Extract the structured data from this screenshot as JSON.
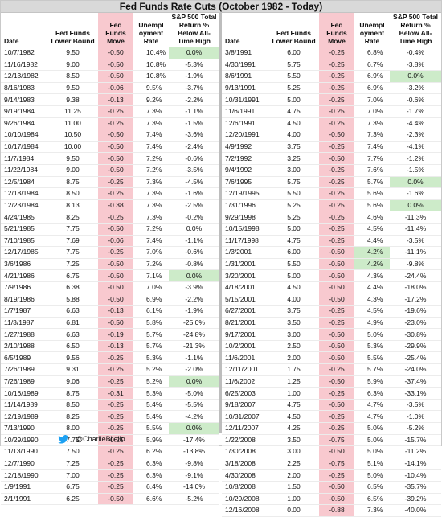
{
  "title": "Fed Funds Rate Cuts (October 1982 - Today)",
  "headers": {
    "date": "Date",
    "lower_bound": "Fed Funds Lower Bound",
    "move": "Fed Funds Move",
    "unemployment": "Unempl oyment Rate",
    "sp500": "S&P 500 Total Return % Below All-Time High"
  },
  "left_rows": [
    {
      "date": "10/7/1982",
      "rate": "9.50",
      "move": "-0.50",
      "unemp": "10.4%",
      "sp": "0.0%",
      "highlight": true
    },
    {
      "date": "11/16/1982",
      "rate": "9.00",
      "move": "-0.50",
      "unemp": "10.8%",
      "sp": "-5.3%",
      "highlight": false
    },
    {
      "date": "12/13/1982",
      "rate": "8.50",
      "move": "-0.50",
      "unemp": "10.8%",
      "sp": "-1.9%",
      "highlight": false
    },
    {
      "date": "8/16/1983",
      "rate": "9.50",
      "move": "-0.06",
      "unemp": "9.5%",
      "sp": "-3.7%",
      "highlight": false
    },
    {
      "date": "9/14/1983",
      "rate": "9.38",
      "move": "-0.13",
      "unemp": "9.2%",
      "sp": "-2.2%",
      "highlight": false
    },
    {
      "date": "9/19/1984",
      "rate": "11.25",
      "move": "-0.25",
      "unemp": "7.3%",
      "sp": "-1.1%",
      "highlight": false
    },
    {
      "date": "9/26/1984",
      "rate": "11.00",
      "move": "-0.25",
      "unemp": "7.3%",
      "sp": "-1.5%",
      "highlight": false
    },
    {
      "date": "10/10/1984",
      "rate": "10.50",
      "move": "-0.50",
      "unemp": "7.4%",
      "sp": "-3.6%",
      "highlight": false
    },
    {
      "date": "10/17/1984",
      "rate": "10.00",
      "move": "-0.50",
      "unemp": "7.4%",
      "sp": "-2.4%",
      "highlight": false
    },
    {
      "date": "11/7/1984",
      "rate": "9.50",
      "move": "-0.50",
      "unemp": "7.2%",
      "sp": "-0.6%",
      "highlight": false
    },
    {
      "date": "11/22/1984",
      "rate": "9.00",
      "move": "-0.50",
      "unemp": "7.2%",
      "sp": "-3.5%",
      "highlight": false
    },
    {
      "date": "12/5/1984",
      "rate": "8.75",
      "move": "-0.25",
      "unemp": "7.3%",
      "sp": "-4.5%",
      "highlight": false
    },
    {
      "date": "12/18/1984",
      "rate": "8.50",
      "move": "-0.25",
      "unemp": "7.3%",
      "sp": "-1.6%",
      "highlight": false
    },
    {
      "date": "12/23/1984",
      "rate": "8.13",
      "move": "-0.38",
      "unemp": "7.3%",
      "sp": "-2.5%",
      "highlight": false
    },
    {
      "date": "4/24/1985",
      "rate": "8.25",
      "move": "-0.25",
      "unemp": "7.3%",
      "sp": "-0.2%",
      "highlight": false
    },
    {
      "date": "5/21/1985",
      "rate": "7.75",
      "move": "-0.50",
      "unemp": "7.2%",
      "sp": "0.0%",
      "highlight": false
    },
    {
      "date": "7/10/1985",
      "rate": "7.69",
      "move": "-0.06",
      "unemp": "7.4%",
      "sp": "-1.1%",
      "highlight": false
    },
    {
      "date": "12/17/1985",
      "rate": "7.75",
      "move": "-0.25",
      "unemp": "7.0%",
      "sp": "-0.6%",
      "highlight": false
    },
    {
      "date": "3/6/1986",
      "rate": "7.25",
      "move": "-0.50",
      "unemp": "7.2%",
      "sp": "-0.8%",
      "highlight": false
    },
    {
      "date": "4/21/1986",
      "rate": "6.75",
      "move": "-0.50",
      "unemp": "7.1%",
      "sp": "0.0%",
      "highlight": true
    },
    {
      "date": "7/9/1986",
      "rate": "6.38",
      "move": "-0.50",
      "unemp": "7.0%",
      "sp": "-3.9%",
      "highlight": false
    },
    {
      "date": "8/19/1986",
      "rate": "5.88",
      "move": "-0.50",
      "unemp": "6.9%",
      "sp": "-2.2%",
      "highlight": false
    },
    {
      "date": "1/7/1987",
      "rate": "6.63",
      "move": "-0.13",
      "unemp": "6.1%",
      "sp": "-1.9%",
      "highlight": false
    },
    {
      "date": "11/3/1987",
      "rate": "6.81",
      "move": "-0.50",
      "unemp": "5.8%",
      "sp": "-25.0%",
      "highlight": false
    },
    {
      "date": "1/27/1988",
      "rate": "6.63",
      "move": "-0.19",
      "unemp": "5.7%",
      "sp": "-24.8%",
      "highlight": false
    },
    {
      "date": "2/10/1988",
      "rate": "6.50",
      "move": "-0.13",
      "unemp": "5.7%",
      "sp": "-21.3%",
      "highlight": false
    },
    {
      "date": "6/5/1989",
      "rate": "9.56",
      "move": "-0.25",
      "unemp": "5.3%",
      "sp": "-1.1%",
      "highlight": false
    },
    {
      "date": "7/26/1989",
      "rate": "9.31",
      "move": "-0.25",
      "unemp": "5.2%",
      "sp": "-2.0%",
      "highlight": false
    },
    {
      "date": "7/26/1989",
      "rate": "9.06",
      "move": "-0.25",
      "unemp": "5.2%",
      "sp": "0.0%",
      "highlight": true
    },
    {
      "date": "10/16/1989",
      "rate": "8.75",
      "move": "-0.31",
      "unemp": "5.3%",
      "sp": "-5.0%",
      "highlight": false
    },
    {
      "date": "11/14/1989",
      "rate": "8.50",
      "move": "-0.25",
      "unemp": "5.4%",
      "sp": "-5.5%",
      "highlight": false
    },
    {
      "date": "12/19/1989",
      "rate": "8.25",
      "move": "-0.25",
      "unemp": "5.4%",
      "sp": "-4.2%",
      "highlight": false
    },
    {
      "date": "7/13/1990",
      "rate": "8.00",
      "move": "-0.25",
      "unemp": "5.5%",
      "sp": "0.0%",
      "highlight": true
    },
    {
      "date": "10/29/1990",
      "rate": "7.75",
      "move": "-0.25",
      "unemp": "5.9%",
      "sp": "-17.4%",
      "highlight": false
    },
    {
      "date": "11/13/1990",
      "rate": "7.50",
      "move": "-0.25",
      "unemp": "6.2%",
      "sp": "-13.8%",
      "highlight": false
    },
    {
      "date": "12/7/1990",
      "rate": "7.25",
      "move": "-0.25",
      "unemp": "6.3%",
      "sp": "-9.8%",
      "highlight": false
    },
    {
      "date": "12/18/1990",
      "rate": "7.00",
      "move": "-0.25",
      "unemp": "6.3%",
      "sp": "-9.1%",
      "highlight": false
    },
    {
      "date": "1/9/1991",
      "rate": "6.75",
      "move": "-0.25",
      "unemp": "6.4%",
      "sp": "-14.0%",
      "highlight": false
    },
    {
      "date": "2/1/1991",
      "rate": "6.25",
      "move": "-0.50",
      "unemp": "6.6%",
      "sp": "-5.2%",
      "highlight": false
    }
  ],
  "right_rows": [
    {
      "date": "3/8/1991",
      "rate": "6.00",
      "move": "-0.25",
      "unemp": "6.8%",
      "sp": "-0.4%",
      "highlight": false,
      "unemp_highlight": false
    },
    {
      "date": "4/30/1991",
      "rate": "5.75",
      "move": "-0.25",
      "unemp": "6.7%",
      "sp": "-3.8%",
      "highlight": false,
      "unemp_highlight": false
    },
    {
      "date": "8/6/1991",
      "rate": "5.50",
      "move": "-0.25",
      "unemp": "6.9%",
      "sp": "0.0%",
      "highlight": true,
      "unemp_highlight": false
    },
    {
      "date": "9/13/1991",
      "rate": "5.25",
      "move": "-0.25",
      "unemp": "6.9%",
      "sp": "-3.2%",
      "highlight": false,
      "unemp_highlight": false
    },
    {
      "date": "10/31/1991",
      "rate": "5.00",
      "move": "-0.25",
      "unemp": "7.0%",
      "sp": "-0.6%",
      "highlight": false,
      "unemp_highlight": false
    },
    {
      "date": "11/6/1991",
      "rate": "4.75",
      "move": "-0.25",
      "unemp": "7.0%",
      "sp": "-1.7%",
      "highlight": false,
      "unemp_highlight": false
    },
    {
      "date": "12/6/1991",
      "rate": "4.50",
      "move": "-0.25",
      "unemp": "7.3%",
      "sp": "-4.4%",
      "highlight": false,
      "unemp_highlight": false
    },
    {
      "date": "12/20/1991",
      "rate": "4.00",
      "move": "-0.50",
      "unemp": "7.3%",
      "sp": "-2.3%",
      "highlight": false,
      "unemp_highlight": false
    },
    {
      "date": "4/9/1992",
      "rate": "3.75",
      "move": "-0.25",
      "unemp": "7.4%",
      "sp": "-4.1%",
      "highlight": false,
      "unemp_highlight": false
    },
    {
      "date": "7/2/1992",
      "rate": "3.25",
      "move": "-0.50",
      "unemp": "7.7%",
      "sp": "-1.2%",
      "highlight": false,
      "unemp_highlight": false
    },
    {
      "date": "9/4/1992",
      "rate": "3.00",
      "move": "-0.25",
      "unemp": "7.6%",
      "sp": "-1.5%",
      "highlight": false,
      "unemp_highlight": false
    },
    {
      "date": "7/6/1995",
      "rate": "5.75",
      "move": "-0.25",
      "unemp": "5.7%",
      "sp": "0.0%",
      "highlight": true,
      "unemp_highlight": false
    },
    {
      "date": "12/19/1995",
      "rate": "5.50",
      "move": "-0.25",
      "unemp": "5.6%",
      "sp": "-1.6%",
      "highlight": false,
      "unemp_highlight": false
    },
    {
      "date": "1/31/1996",
      "rate": "5.25",
      "move": "-0.25",
      "unemp": "5.6%",
      "sp": "0.0%",
      "highlight": true,
      "unemp_highlight": false
    },
    {
      "date": "9/29/1998",
      "rate": "5.25",
      "move": "-0.25",
      "unemp": "4.6%",
      "sp": "-11.3%",
      "highlight": false,
      "unemp_highlight": false
    },
    {
      "date": "10/15/1998",
      "rate": "5.00",
      "move": "-0.25",
      "unemp": "4.5%",
      "sp": "-11.4%",
      "highlight": false,
      "unemp_highlight": false
    },
    {
      "date": "11/17/1998",
      "rate": "4.75",
      "move": "-0.25",
      "unemp": "4.4%",
      "sp": "-3.5%",
      "highlight": false,
      "unemp_highlight": false
    },
    {
      "date": "1/3/2001",
      "rate": "6.00",
      "move": "-0.50",
      "unemp": "4.2%",
      "sp": "-11.1%",
      "highlight": false,
      "unemp_highlight": true
    },
    {
      "date": "1/31/2001",
      "rate": "5.50",
      "move": "-0.50",
      "unemp": "4.2%",
      "sp": "-9.8%",
      "highlight": false,
      "unemp_highlight": true
    },
    {
      "date": "3/20/2001",
      "rate": "5.00",
      "move": "-0.50",
      "unemp": "4.3%",
      "sp": "-24.4%",
      "highlight": false,
      "unemp_highlight": false
    },
    {
      "date": "4/18/2001",
      "rate": "4.50",
      "move": "-0.50",
      "unemp": "4.4%",
      "sp": "-18.0%",
      "highlight": false,
      "unemp_highlight": false
    },
    {
      "date": "5/15/2001",
      "rate": "4.00",
      "move": "-0.50",
      "unemp": "4.3%",
      "sp": "-17.2%",
      "highlight": false,
      "unemp_highlight": false
    },
    {
      "date": "6/27/2001",
      "rate": "3.75",
      "move": "-0.25",
      "unemp": "4.5%",
      "sp": "-19.6%",
      "highlight": false,
      "unemp_highlight": false
    },
    {
      "date": "8/21/2001",
      "rate": "3.50",
      "move": "-0.25",
      "unemp": "4.9%",
      "sp": "-23.0%",
      "highlight": false,
      "unemp_highlight": false
    },
    {
      "date": "9/17/2001",
      "rate": "3.00",
      "move": "-0.50",
      "unemp": "5.0%",
      "sp": "-30.8%",
      "highlight": false,
      "unemp_highlight": false
    },
    {
      "date": "10/2/2001",
      "rate": "2.50",
      "move": "-0.50",
      "unemp": "5.3%",
      "sp": "-29.9%",
      "highlight": false,
      "unemp_highlight": false
    },
    {
      "date": "11/6/2001",
      "rate": "2.00",
      "move": "-0.50",
      "unemp": "5.5%",
      "sp": "-25.4%",
      "highlight": false,
      "unemp_highlight": false
    },
    {
      "date": "12/11/2001",
      "rate": "1.75",
      "move": "-0.25",
      "unemp": "5.7%",
      "sp": "-24.0%",
      "highlight": false,
      "unemp_highlight": false
    },
    {
      "date": "11/6/2002",
      "rate": "1.25",
      "move": "-0.50",
      "unemp": "5.9%",
      "sp": "-37.4%",
      "highlight": false,
      "unemp_highlight": false
    },
    {
      "date": "6/25/2003",
      "rate": "1.00",
      "move": "-0.25",
      "unemp": "6.3%",
      "sp": "-33.1%",
      "highlight": false,
      "unemp_highlight": false
    },
    {
      "date": "9/18/2007",
      "rate": "4.75",
      "move": "-0.50",
      "unemp": "4.7%",
      "sp": "-3.5%",
      "highlight": false,
      "unemp_highlight": false
    },
    {
      "date": "10/31/2007",
      "rate": "4.50",
      "move": "-0.25",
      "unemp": "4.7%",
      "sp": "-1.0%",
      "highlight": false,
      "unemp_highlight": false
    },
    {
      "date": "12/11/2007",
      "rate": "4.25",
      "move": "-0.25",
      "unemp": "5.0%",
      "sp": "-5.2%",
      "highlight": false,
      "unemp_highlight": false
    },
    {
      "date": "1/22/2008",
      "rate": "3.50",
      "move": "-0.75",
      "unemp": "5.0%",
      "sp": "-15.7%",
      "highlight": false,
      "unemp_highlight": false
    },
    {
      "date": "1/30/2008",
      "rate": "3.00",
      "move": "-0.50",
      "unemp": "5.0%",
      "sp": "-11.2%",
      "highlight": false,
      "unemp_highlight": false
    },
    {
      "date": "3/18/2008",
      "rate": "2.25",
      "move": "-0.75",
      "unemp": "5.1%",
      "sp": "-14.1%",
      "highlight": false,
      "unemp_highlight": false
    },
    {
      "date": "4/30/2008",
      "rate": "2.00",
      "move": "-0.25",
      "unemp": "5.0%",
      "sp": "-10.4%",
      "highlight": false,
      "unemp_highlight": false
    },
    {
      "date": "10/8/2008",
      "rate": "1.50",
      "move": "-0.50",
      "unemp": "6.5%",
      "sp": "-35.7%",
      "highlight": false,
      "unemp_highlight": false
    },
    {
      "date": "10/29/2008",
      "rate": "1.00",
      "move": "-0.50",
      "unemp": "6.5%",
      "sp": "-39.2%",
      "highlight": false,
      "unemp_highlight": false
    },
    {
      "date": "12/16/2008",
      "rate": "0.00",
      "move": "-0.88",
      "unemp": "7.3%",
      "sp": "-40.0%",
      "highlight": false,
      "unemp_highlight": false
    }
  ],
  "footer": {
    "handle": "@CharlieBilello",
    "icon": "twitter-bird-icon",
    "icon_color": "#1da1f2"
  },
  "colors": {
    "title_bg": "#d9d9d9",
    "move_bg": "#f8c9cf",
    "highlight_bg": "#cdebc9"
  }
}
